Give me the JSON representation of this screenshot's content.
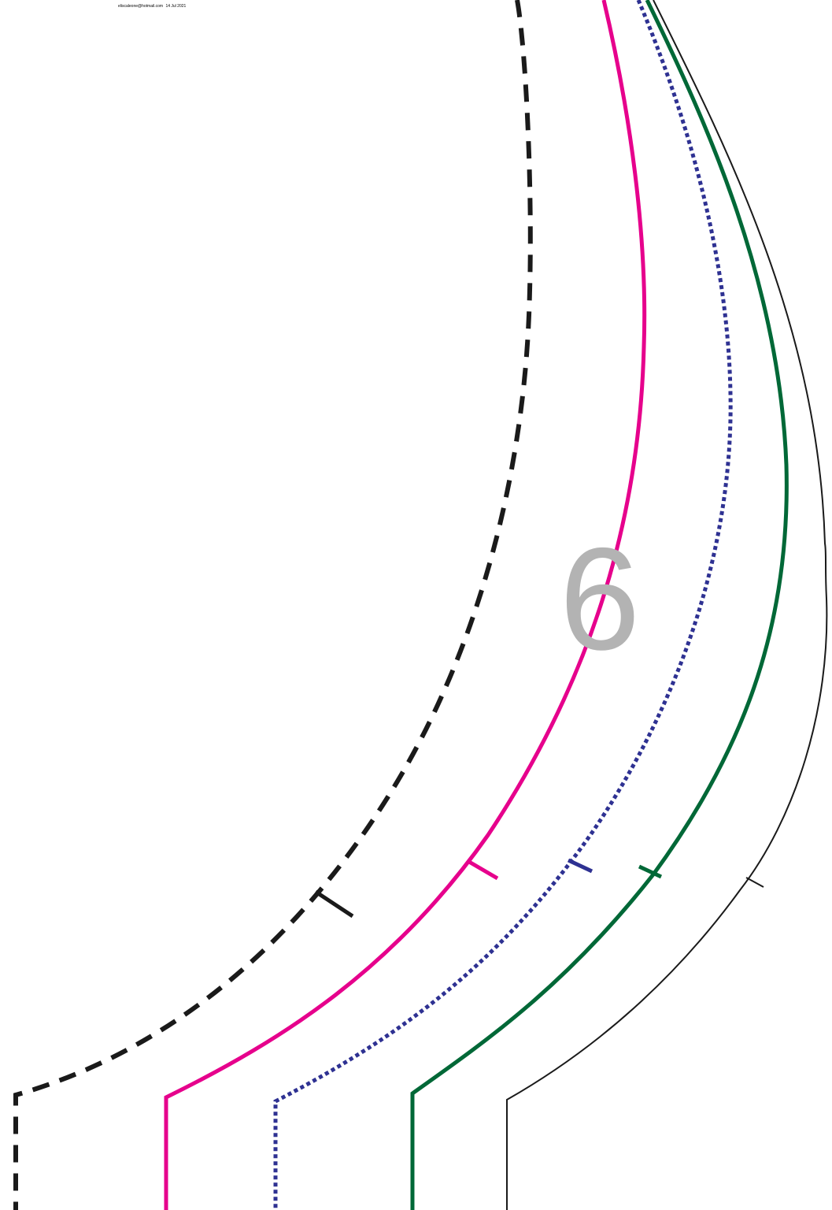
{
  "header": {
    "email": "eliscaleone@hotmail.com",
    "date": "14 Jul 2021"
  },
  "pattern": {
    "piece_number": "6",
    "piece_number_color": "#b3b3b3",
    "size_lines": [
      {
        "id": "black-dashed",
        "color": "#1a1a1a",
        "style": "dashed"
      },
      {
        "id": "magenta-solid",
        "color": "#e6008c",
        "style": "solid"
      },
      {
        "id": "navy-dotted",
        "color": "#2e3192",
        "style": "dotted"
      },
      {
        "id": "green-solid",
        "color": "#006837",
        "style": "solid"
      },
      {
        "id": "black-thin",
        "color": "#1a1a1a",
        "style": "thin solid"
      }
    ]
  }
}
